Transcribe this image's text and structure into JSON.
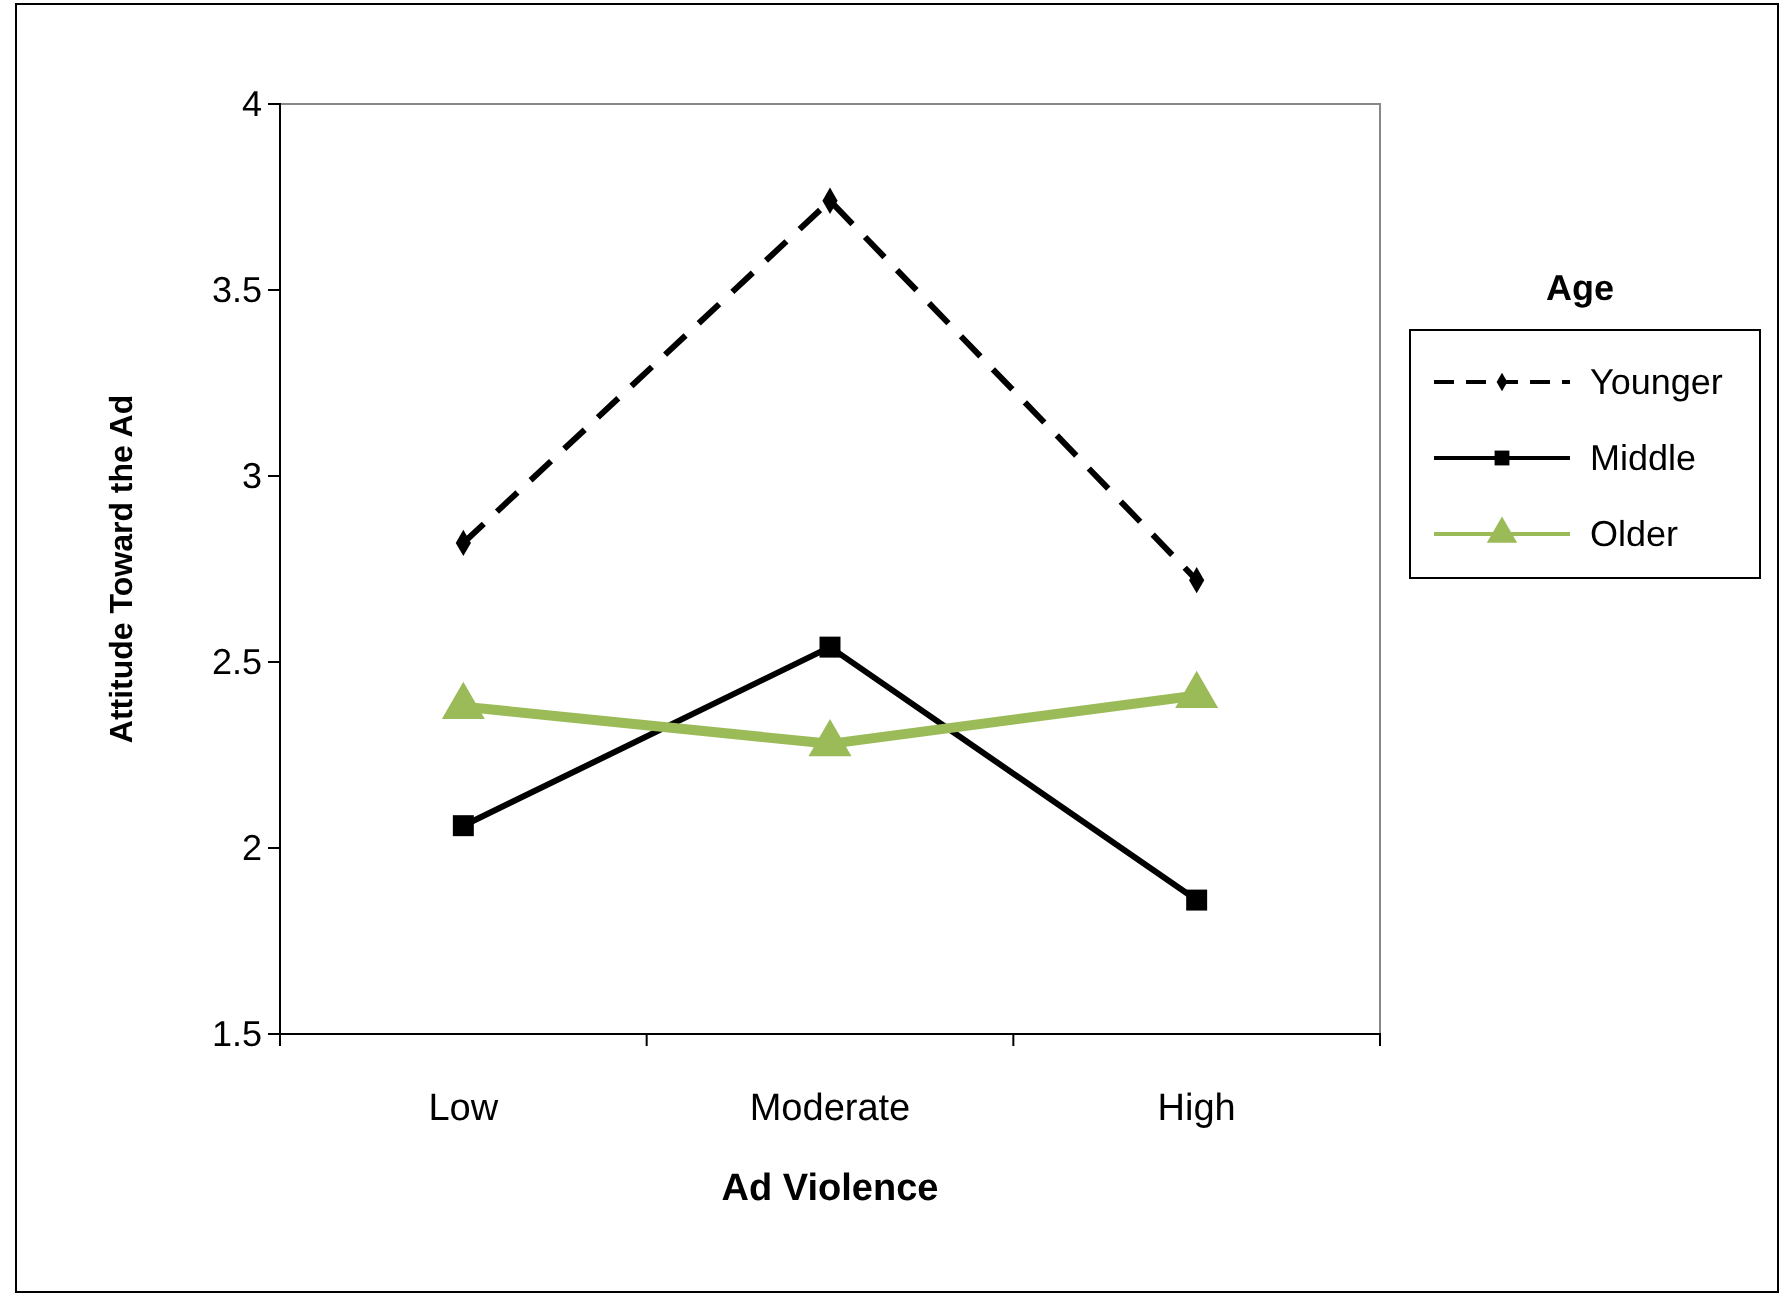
{
  "chart_data": {
    "type": "line",
    "xlabel": "Ad Violence",
    "ylabel": "Attitude Toward the Ad",
    "legend_title": "Age",
    "legend": "right",
    "categories": [
      "Low",
      "Moderate",
      "High"
    ],
    "ylim": [
      1.5,
      4
    ],
    "yticks": [
      1.5,
      2,
      2.5,
      3,
      3.5,
      4
    ],
    "series": [
      {
        "name": "Younger",
        "color": "#000000",
        "values": [
          2.82,
          3.74,
          2.72
        ],
        "marker": "diamond",
        "line_style": "dashed"
      },
      {
        "name": "Middle",
        "color": "#000000",
        "values": [
          2.06,
          2.54,
          1.86
        ],
        "marker": "square",
        "line_style": "solid"
      },
      {
        "name": "Older",
        "color": "#9bbb59",
        "values": [
          2.38,
          2.28,
          2.41
        ],
        "marker": "triangle",
        "line_style": "solid"
      }
    ]
  }
}
